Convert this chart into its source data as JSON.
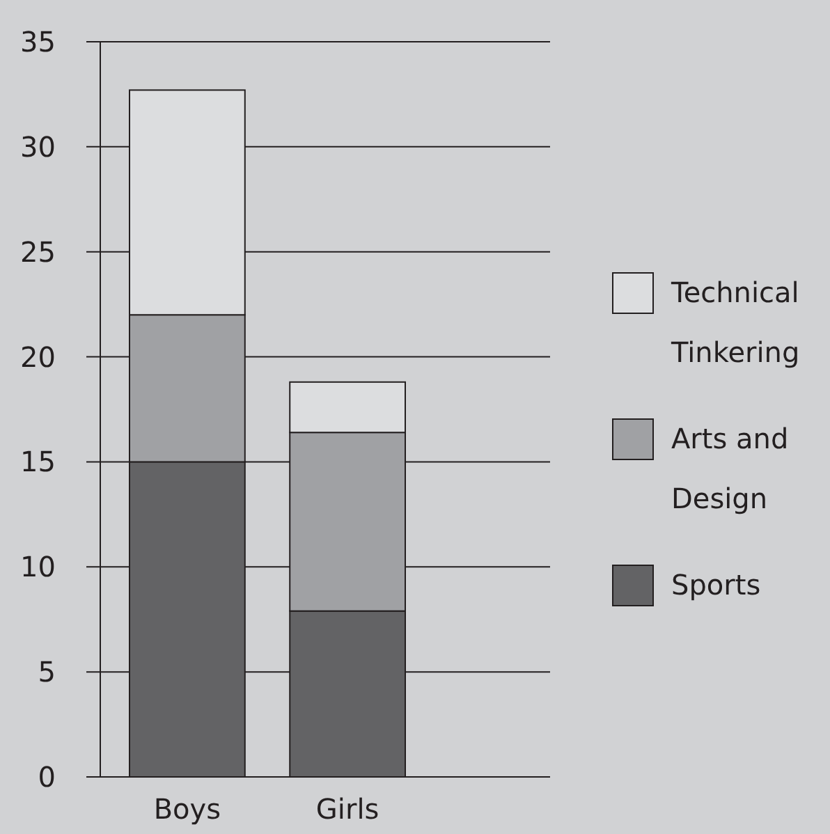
{
  "chart_data": {
    "type": "bar",
    "stacked": true,
    "categories": [
      "Boys",
      "Girls"
    ],
    "series": [
      {
        "name": "Sports",
        "color": "#636365",
        "values": [
          15,
          7.9
        ]
      },
      {
        "name": "Arts and Design",
        "color": "#a0a1a4",
        "values": [
          7,
          8.5
        ]
      },
      {
        "name": "Technical Tinkering",
        "color": "#dcdddf",
        "values": [
          10.7,
          2.4
        ]
      }
    ],
    "ylim": [
      0,
      35
    ],
    "yticks": [
      0,
      5,
      10,
      15,
      20,
      25,
      30,
      35
    ],
    "grid": "y",
    "legend": "right"
  }
}
